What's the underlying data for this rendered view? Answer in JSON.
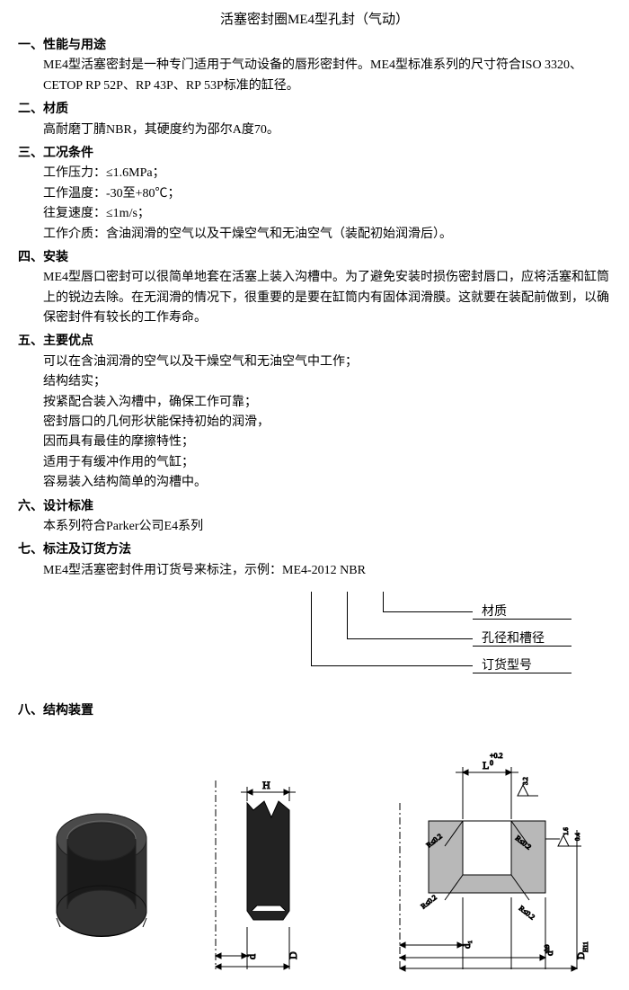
{
  "title": "活塞密封圈ME4型孔封（气动）",
  "sections": [
    {
      "num": "一、",
      "heading": "性能与用途",
      "body": [
        "ME4型活塞密封是一种专门适用于气动设备的唇形密封件。ME4型标准系列的尺寸符合ISO 3320、CETOP RP 52P、RP 43P、RP 53P标准的缸径。"
      ]
    },
    {
      "num": "二、",
      "heading": "材质",
      "body": [
        "高耐磨丁腈NBR，其硬度约为邵尔A度70。"
      ]
    },
    {
      "num": "三、",
      "heading": "工况条件",
      "body": [
        "工作压力：≤1.6MPa；",
        "工作温度：-30至+80℃；",
        "往复速度：≤1m/s；",
        "工作介质：含油润滑的空气以及干燥空气和无油空气（装配初始润滑后）。"
      ]
    },
    {
      "num": "四、",
      "heading": "安装",
      "body": [
        "ME4型唇口密封可以很简单地套在活塞上装入沟槽中。为了避免安装时损伤密封唇口，应将活塞和缸筒上的锐边去除。在无润滑的情况下，很重要的是要在缸筒内有固体润滑膜。这就要在装配前做到，以确保密封件有较长的工作寿命。"
      ]
    },
    {
      "num": "五、",
      "heading": "主要优点",
      "body": [
        "可以在含油润滑的空气以及干燥空气和无油空气中工作；",
        "结构结实；",
        "按紧配合装入沟槽中，确保工作可靠；",
        "密封唇口的几何形状能保持初始的润滑，",
        "因而具有最佳的摩擦特性；",
        "适用于有缓冲作用的气缸；",
        "容易装入结构简单的沟槽中。"
      ]
    },
    {
      "num": "六、",
      "heading": "设计标准",
      "body": [
        "本系列符合Parker公司E4系列"
      ]
    },
    {
      "num": "七、",
      "heading": "标注及订货方法",
      "body": [
        "ME4型活塞密封件用订货号来标注，示例：ME4-2012 NBR"
      ]
    },
    {
      "num": "八、",
      "heading": "结构装置",
      "body": []
    }
  ],
  "ordering": {
    "labels": [
      "材质",
      "孔径和槽径",
      "订货型号"
    ]
  },
  "drawings": {
    "profile": {
      "labelH": "H",
      "labelD_small": "d",
      "labelD_big": "D"
    },
    "groove": {
      "labelL": "L",
      "tolL_top": "+0.2",
      "tolL_bot": "0",
      "surf1_up": "3.2",
      "surf2_up": "1.6",
      "surf2_low": "0.4",
      "radius": "R≤0.2",
      "d_little": "d₁",
      "d_h9": "d",
      "d_h9_sup": "h9",
      "D_H11": "D",
      "D_H11_sub": "H11"
    },
    "colors": {
      "profile_fill": "#222222",
      "groove_fill": "#b8b8b8",
      "line": "#000000",
      "text": "#000000"
    }
  }
}
